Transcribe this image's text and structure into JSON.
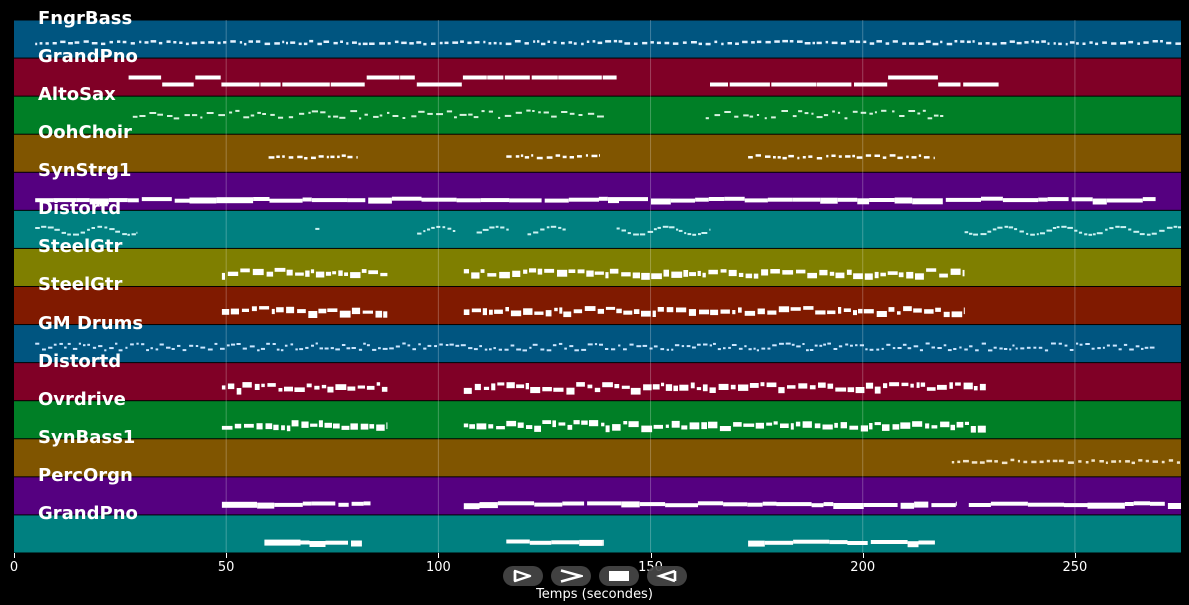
{
  "timeline": {
    "axis_label": "Temps (secondes)",
    "max_time": 275,
    "ticks": [
      {
        "value": 0,
        "label": "0"
      },
      {
        "value": 50,
        "label": "50"
      },
      {
        "value": 100,
        "label": "100"
      },
      {
        "value": 150,
        "label": "150"
      },
      {
        "value": 200,
        "label": "200"
      },
      {
        "value": 250,
        "label": "250"
      }
    ]
  },
  "tracks": [
    {
      "name": "FngrBass",
      "color": "#005580",
      "note_color": "#e6f2ff",
      "segments": [
        [
          5,
          275
        ]
      ],
      "pattern": "dots"
    },
    {
      "name": "GrandPno",
      "color": "#800026",
      "note_color": "#ffffff",
      "segments": [
        [
          27,
          142
        ],
        [
          164,
          232
        ]
      ],
      "pattern": "twolines"
    },
    {
      "name": "AltoSax",
      "color": "#007F26",
      "note_color": "#d9f2e0",
      "segments": [
        [
          28,
          139
        ],
        [
          163,
          219
        ]
      ],
      "pattern": "scatter"
    },
    {
      "name": "OohChoir",
      "color": "#805500",
      "note_color": "#ffffff",
      "segments": [
        [
          60,
          81
        ],
        [
          116,
          138
        ],
        [
          173,
          217
        ]
      ],
      "pattern": "dots"
    },
    {
      "name": "SynStrg1",
      "color": "#550080",
      "note_color": "#ffffff",
      "segments": [
        [
          5,
          269
        ]
      ],
      "pattern": "line"
    },
    {
      "name": "Distortd",
      "color": "#008080",
      "note_color": "#ccf2f2",
      "segments": [
        [
          5,
          29
        ],
        [
          71,
          72
        ],
        [
          95,
          104
        ],
        [
          109,
          117
        ],
        [
          121,
          130
        ],
        [
          142,
          164
        ],
        [
          224,
          275
        ]
      ],
      "pattern": "wave"
    },
    {
      "name": "SteelGtr",
      "color": "#7F7F00",
      "note_color": "#ffffff",
      "segments": [
        [
          49,
          88
        ],
        [
          106,
          224
        ]
      ],
      "pattern": "dense"
    },
    {
      "name": "SteelGtr",
      "color": "#801A00",
      "note_color": "#ffffff",
      "segments": [
        [
          49,
          88
        ],
        [
          106,
          224
        ]
      ],
      "pattern": "dense"
    },
    {
      "name": "GM Drums",
      "color": "#005580",
      "note_color": "#cce6ff",
      "segments": [
        [
          5,
          269
        ]
      ],
      "pattern": "drums"
    },
    {
      "name": "Distortd",
      "color": "#800026",
      "note_color": "#ffffff",
      "segments": [
        [
          49,
          88
        ],
        [
          106,
          229
        ]
      ],
      "pattern": "dense"
    },
    {
      "name": "Ovrdrive",
      "color": "#007F26",
      "note_color": "#ffffff",
      "segments": [
        [
          49,
          88
        ],
        [
          106,
          229
        ]
      ],
      "pattern": "dense"
    },
    {
      "name": "SynBass1",
      "color": "#805500",
      "note_color": "#f2e6cc",
      "segments": [
        [
          221,
          275
        ]
      ],
      "pattern": "dots"
    },
    {
      "name": "PercOrgn",
      "color": "#550080",
      "note_color": "#ffffff",
      "segments": [
        [
          49,
          84
        ],
        [
          106,
          222
        ],
        [
          225,
          275
        ]
      ],
      "pattern": "line"
    },
    {
      "name": "GrandPno",
      "color": "#008080",
      "note_color": "#ffffff",
      "segments": [
        [
          59,
          82
        ],
        [
          116,
          139
        ],
        [
          173,
          217
        ]
      ],
      "pattern": "line"
    }
  ],
  "transport": {
    "buttons": [
      {
        "name": "skip-start-icon"
      },
      {
        "name": "play-icon"
      },
      {
        "name": "stop-icon"
      },
      {
        "name": "rewind-icon"
      }
    ]
  }
}
